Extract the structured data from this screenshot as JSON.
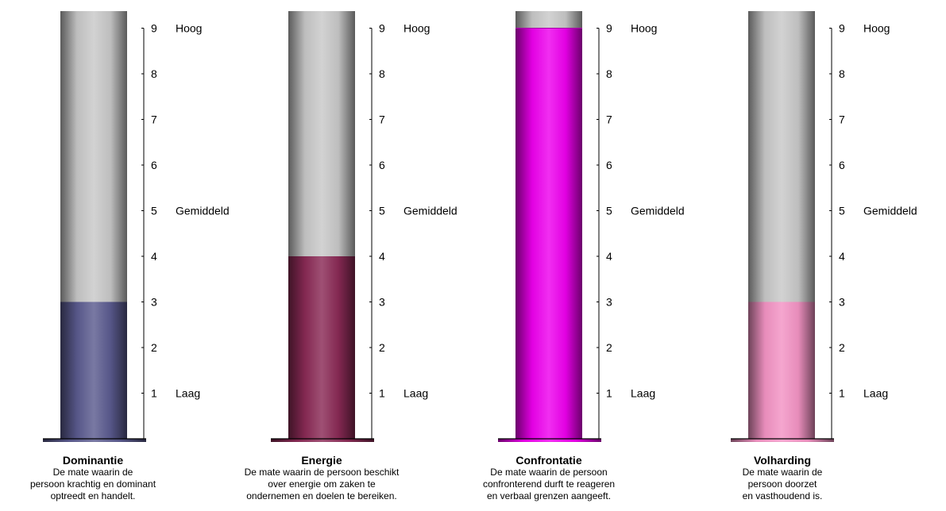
{
  "chart_data": [
    {
      "type": "bar",
      "title": "Dominantie",
      "description": "De mate waarin de\npersoon krachtig en dominant\noptreedt en handelt.",
      "value": 3,
      "ylim": [
        0,
        9.5
      ],
      "ticks": [
        1,
        2,
        3,
        4,
        5,
        6,
        7,
        8,
        9
      ],
      "level_labels": [
        {
          "value": 9,
          "text": "Hoog"
        },
        {
          "value": 5,
          "text": "Gemiddeld"
        },
        {
          "value": 1,
          "text": "Laag"
        }
      ],
      "color": "#5b5b8f"
    },
    {
      "type": "bar",
      "title": "Energie",
      "description": "De mate waarin de persoon beschikt\nover energie om zaken te\nondernemen en doelen te bereiken.",
      "value": 4,
      "ylim": [
        0,
        9.5
      ],
      "ticks": [
        1,
        2,
        3,
        4,
        5,
        6,
        7,
        8,
        9
      ],
      "level_labels": [
        {
          "value": 9,
          "text": "Hoog"
        },
        {
          "value": 5,
          "text": "Gemiddeld"
        },
        {
          "value": 1,
          "text": "Laag"
        }
      ],
      "color": "#8a2a55"
    },
    {
      "type": "bar",
      "title": "Confrontatie",
      "description": "De mate waarin de persoon\nconfronterend durft te reageren\nen verbaal grenzen aangeeft.",
      "value": 9,
      "ylim": [
        0,
        9.5
      ],
      "ticks": [
        1,
        2,
        3,
        4,
        5,
        6,
        7,
        8,
        9
      ],
      "level_labels": [
        {
          "value": 9,
          "text": "Hoog"
        },
        {
          "value": 5,
          "text": "Gemiddeld"
        },
        {
          "value": 1,
          "text": "Laag"
        }
      ],
      "color": "#ee00ee"
    },
    {
      "type": "bar",
      "title": "Volharding",
      "description": "De mate waarin de\npersoon doorzet\nen vasthoudend is.",
      "value": 3,
      "ylim": [
        0,
        9.5
      ],
      "ticks": [
        1,
        2,
        3,
        4,
        5,
        6,
        7,
        8,
        9
      ],
      "level_labels": [
        {
          "value": 9,
          "text": "Hoog"
        },
        {
          "value": 5,
          "text": "Gemiddeld"
        },
        {
          "value": 1,
          "text": "Laag"
        }
      ],
      "color": "#f393c4"
    }
  ]
}
